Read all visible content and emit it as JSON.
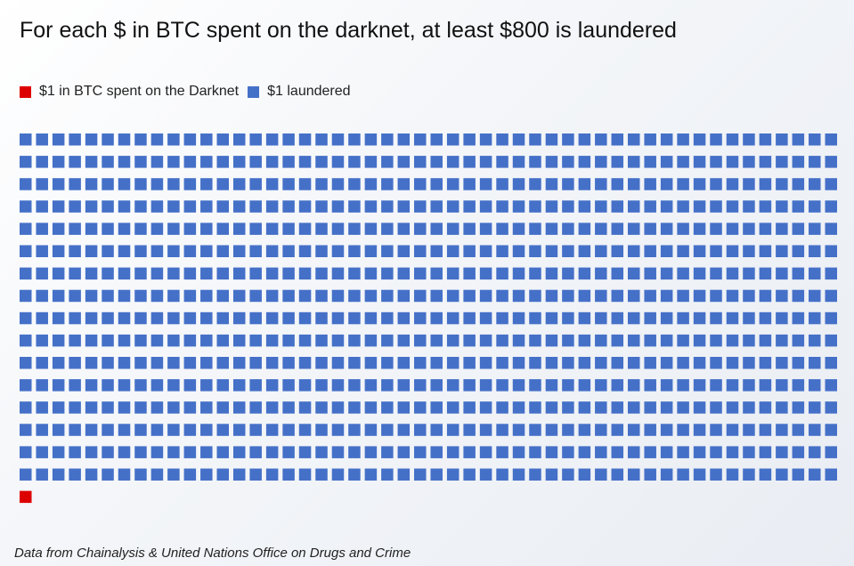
{
  "title": "For each $ in BTC spent on the darknet, at least $800 is laundered",
  "legend": [
    {
      "label": "$1 in BTC spent on the Darknet",
      "color": "#dd0000"
    },
    {
      "label": "$1 laundered",
      "color": "#4570c8"
    }
  ],
  "source": "Data from Chainalysis & United Nations Office on Drugs and Crime",
  "chart_data": {
    "type": "waffle",
    "title": "For each $ in BTC spent on the darknet, at least $800 is laundered",
    "columns": 50,
    "series": [
      {
        "name": "$1 laundered",
        "value": 800,
        "color": "#4570c8"
      },
      {
        "name": "$1 in BTC spent on the Darknet",
        "value": 1,
        "color": "#dd0000"
      }
    ],
    "unit_value": 1
  }
}
